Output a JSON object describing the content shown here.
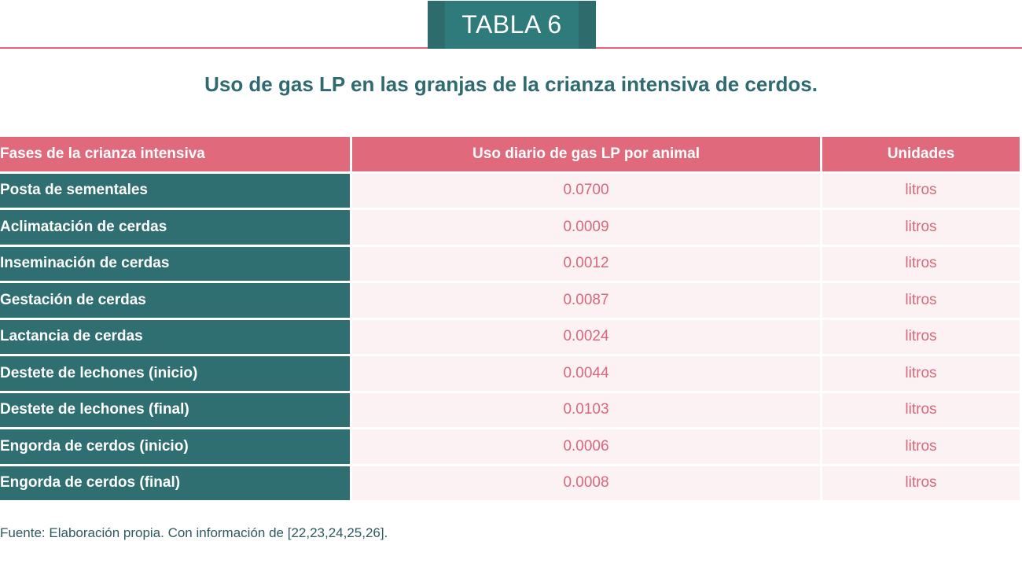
{
  "badge": {
    "label": "TABLA 6"
  },
  "title": "Uso de gas LP en las granjas de la crianza intensiva de cerdos.",
  "table": {
    "headers": [
      "Fases de la crianza intensiva",
      "Uso diario de gas LP por animal",
      "Unidades"
    ],
    "rows": [
      {
        "phase": "Posta de sementales",
        "value": "0.0700",
        "unit": "litros"
      },
      {
        "phase": "Aclimatación de cerdas",
        "value": "0.0009",
        "unit": "litros"
      },
      {
        "phase": "Inseminación de cerdas",
        "value": "0.0012",
        "unit": "litros"
      },
      {
        "phase": "Gestación de cerdas",
        "value": "0.0087",
        "unit": "litros"
      },
      {
        "phase": "Lactancia de cerdas",
        "value": "0.0024",
        "unit": "litros"
      },
      {
        "phase": "Destete de lechones (inicio)",
        "value": "0.0044",
        "unit": "litros"
      },
      {
        "phase": "Destete de lechones (final)",
        "value": "0.0103",
        "unit": "litros"
      },
      {
        "phase": "Engorda de cerdos (inicio)",
        "value": "0.0006",
        "unit": "litros"
      },
      {
        "phase": "Engorda de cerdos (final)",
        "value": "0.0008",
        "unit": "litros"
      }
    ]
  },
  "footnote": "Fuente: Elaboración propia. Con información de [22,23,24,25,26].",
  "colors": {
    "teal": "#2f6f71",
    "pink": "#e0697c",
    "row_bg": "#fdf2f3"
  }
}
